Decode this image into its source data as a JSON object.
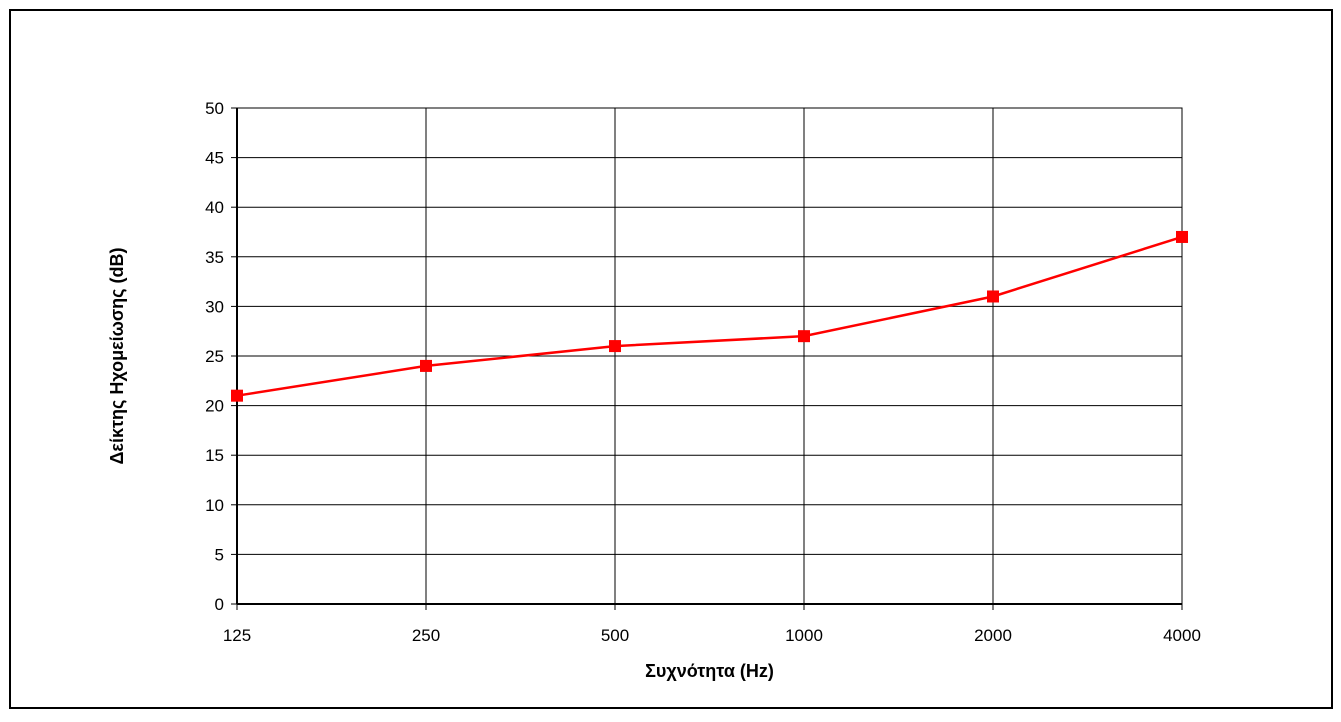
{
  "chart_data": {
    "type": "line",
    "title": "",
    "xlabel": "Συχνότητα (Hz)",
    "ylabel": "Δείκτης Ηχομείωσης (dB)",
    "categories": [
      "125",
      "250",
      "500",
      "1000",
      "2000",
      "4000"
    ],
    "series": [
      {
        "values": [
          21,
          24,
          26,
          27,
          31,
          37
        ],
        "color": "#ff0000",
        "marker": "square"
      }
    ],
    "ylim": [
      0,
      50
    ],
    "yticks": [
      0,
      5,
      10,
      15,
      20,
      25,
      30,
      35,
      40,
      45,
      50
    ],
    "x_scale": "categorical",
    "grid": {
      "horizontal": true,
      "vertical": true
    },
    "legend": "none",
    "plot_background": "#ffffff",
    "frame_color": "#000000"
  }
}
